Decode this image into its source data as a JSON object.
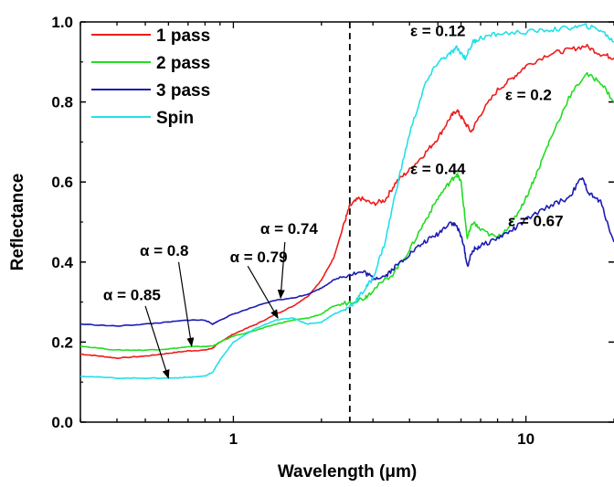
{
  "chart_data": {
    "type": "line",
    "xlabel": "Wavelength (μm)",
    "ylabel": "Reflectance",
    "xscale": "log",
    "xlim": [
      0.3,
      20
    ],
    "ylim": [
      0.0,
      1.0
    ],
    "x_ticks": [
      {
        "value": 1,
        "label": "1"
      },
      {
        "value": 10,
        "label": "10"
      }
    ],
    "y_ticks": [
      {
        "value": 0.0,
        "label": "0.0"
      },
      {
        "value": 0.2,
        "label": "0.2"
      },
      {
        "value": 0.4,
        "label": "0.4"
      },
      {
        "value": 0.6,
        "label": "0.6"
      },
      {
        "value": 0.8,
        "label": "0.8"
      },
      {
        "value": 1.0,
        "label": "1.0"
      }
    ],
    "vline_x": 2.5,
    "legend_position": "top-left",
    "series": [
      {
        "name": "1 pass",
        "color": "#ee1c1c",
        "points": [
          [
            0.3,
            0.17
          ],
          [
            0.35,
            0.165
          ],
          [
            0.4,
            0.16
          ],
          [
            0.5,
            0.165
          ],
          [
            0.6,
            0.172
          ],
          [
            0.7,
            0.178
          ],
          [
            0.8,
            0.18
          ],
          [
            0.85,
            0.185
          ],
          [
            0.9,
            0.2
          ],
          [
            1.0,
            0.22
          ],
          [
            1.2,
            0.245
          ],
          [
            1.4,
            0.27
          ],
          [
            1.6,
            0.29
          ],
          [
            1.8,
            0.315
          ],
          [
            2.0,
            0.355
          ],
          [
            2.2,
            0.41
          ],
          [
            2.4,
            0.5
          ],
          [
            2.5,
            0.54
          ],
          [
            2.7,
            0.56
          ],
          [
            3.0,
            0.545
          ],
          [
            3.3,
            0.555
          ],
          [
            3.6,
            0.6
          ],
          [
            4.0,
            0.63
          ],
          [
            4.5,
            0.67
          ],
          [
            5.0,
            0.71
          ],
          [
            5.5,
            0.76
          ],
          [
            5.8,
            0.78
          ],
          [
            6.1,
            0.755
          ],
          [
            6.5,
            0.725
          ],
          [
            7.0,
            0.77
          ],
          [
            8.0,
            0.83
          ],
          [
            9.0,
            0.86
          ],
          [
            10.0,
            0.89
          ],
          [
            12.0,
            0.92
          ],
          [
            14.0,
            0.93
          ],
          [
            16.0,
            0.94
          ],
          [
            18.0,
            0.92
          ],
          [
            20.0,
            0.91
          ]
        ]
      },
      {
        "name": "2 pass",
        "color": "#22dd22",
        "points": [
          [
            0.3,
            0.19
          ],
          [
            0.4,
            0.18
          ],
          [
            0.5,
            0.18
          ],
          [
            0.6,
            0.183
          ],
          [
            0.7,
            0.188
          ],
          [
            0.85,
            0.19
          ],
          [
            0.9,
            0.2
          ],
          [
            1.0,
            0.215
          ],
          [
            1.2,
            0.23
          ],
          [
            1.4,
            0.245
          ],
          [
            1.6,
            0.255
          ],
          [
            1.8,
            0.26
          ],
          [
            2.0,
            0.27
          ],
          [
            2.2,
            0.29
          ],
          [
            2.5,
            0.3
          ],
          [
            2.8,
            0.31
          ],
          [
            3.0,
            0.33
          ],
          [
            3.5,
            0.37
          ],
          [
            4.0,
            0.43
          ],
          [
            4.5,
            0.5
          ],
          [
            5.0,
            0.56
          ],
          [
            5.5,
            0.6
          ],
          [
            5.8,
            0.62
          ],
          [
            6.0,
            0.6
          ],
          [
            6.3,
            0.46
          ],
          [
            6.6,
            0.5
          ],
          [
            7.0,
            0.48
          ],
          [
            8.0,
            0.46
          ],
          [
            9.0,
            0.5
          ],
          [
            10.0,
            0.56
          ],
          [
            11.0,
            0.63
          ],
          [
            12.0,
            0.7
          ],
          [
            14.0,
            0.81
          ],
          [
            16.0,
            0.87
          ],
          [
            18.0,
            0.85
          ],
          [
            20.0,
            0.8
          ]
        ]
      },
      {
        "name": "3 pass",
        "color": "#1c1cb4",
        "points": [
          [
            0.3,
            0.245
          ],
          [
            0.4,
            0.24
          ],
          [
            0.5,
            0.245
          ],
          [
            0.6,
            0.25
          ],
          [
            0.7,
            0.255
          ],
          [
            0.8,
            0.255
          ],
          [
            0.85,
            0.245
          ],
          [
            0.9,
            0.255
          ],
          [
            1.0,
            0.27
          ],
          [
            1.2,
            0.29
          ],
          [
            1.4,
            0.305
          ],
          [
            1.6,
            0.31
          ],
          [
            1.8,
            0.32
          ],
          [
            2.0,
            0.335
          ],
          [
            2.2,
            0.355
          ],
          [
            2.5,
            0.37
          ],
          [
            2.8,
            0.375
          ],
          [
            3.0,
            0.36
          ],
          [
            3.3,
            0.365
          ],
          [
            3.6,
            0.39
          ],
          [
            4.0,
            0.42
          ],
          [
            4.5,
            0.45
          ],
          [
            5.0,
            0.47
          ],
          [
            5.5,
            0.5
          ],
          [
            5.8,
            0.49
          ],
          [
            6.1,
            0.45
          ],
          [
            6.3,
            0.39
          ],
          [
            6.6,
            0.43
          ],
          [
            7.0,
            0.44
          ],
          [
            8.0,
            0.46
          ],
          [
            9.0,
            0.48
          ],
          [
            10.0,
            0.505
          ],
          [
            12.0,
            0.54
          ],
          [
            14.0,
            0.56
          ],
          [
            15.5,
            0.61
          ],
          [
            16.5,
            0.57
          ],
          [
            18.0,
            0.55
          ],
          [
            20.0,
            0.45
          ]
        ]
      },
      {
        "name": "Spin",
        "color": "#22e0e8",
        "points": [
          [
            0.3,
            0.115
          ],
          [
            0.4,
            0.11
          ],
          [
            0.5,
            0.11
          ],
          [
            0.6,
            0.11
          ],
          [
            0.7,
            0.112
          ],
          [
            0.8,
            0.115
          ],
          [
            0.85,
            0.125
          ],
          [
            0.9,
            0.155
          ],
          [
            1.0,
            0.2
          ],
          [
            1.2,
            0.235
          ],
          [
            1.4,
            0.255
          ],
          [
            1.6,
            0.26
          ],
          [
            1.8,
            0.245
          ],
          [
            2.0,
            0.25
          ],
          [
            2.2,
            0.27
          ],
          [
            2.4,
            0.28
          ],
          [
            2.6,
            0.3
          ],
          [
            2.8,
            0.33
          ],
          [
            3.0,
            0.36
          ],
          [
            3.3,
            0.45
          ],
          [
            3.6,
            0.58
          ],
          [
            4.0,
            0.72
          ],
          [
            4.5,
            0.84
          ],
          [
            5.0,
            0.9
          ],
          [
            5.5,
            0.92
          ],
          [
            5.8,
            0.935
          ],
          [
            6.2,
            0.91
          ],
          [
            6.6,
            0.95
          ],
          [
            7.0,
            0.96
          ],
          [
            8.0,
            0.97
          ],
          [
            10.0,
            0.975
          ],
          [
            12.0,
            0.98
          ],
          [
            14.0,
            0.985
          ],
          [
            16.0,
            0.99
          ],
          [
            18.0,
            0.98
          ],
          [
            20.0,
            0.95
          ]
        ]
      }
    ],
    "annotations": [
      {
        "label": "α = 0.85",
        "x": 0.45,
        "y": 0.305,
        "arrow_from": [
          0.5,
          0.29
        ],
        "arrow_to": [
          0.6,
          0.11
        ]
      },
      {
        "label": "α = 0.8",
        "x": 0.58,
        "y": 0.415,
        "arrow_from": [
          0.65,
          0.4
        ],
        "arrow_to": [
          0.72,
          0.19
        ]
      },
      {
        "label": "α = 0.79",
        "x": 1.22,
        "y": 0.4,
        "arrow_from": [
          1.12,
          0.39
        ],
        "arrow_to": [
          1.42,
          0.26
        ]
      },
      {
        "label": "α = 0.74",
        "x": 1.55,
        "y": 0.47,
        "arrow_from": [
          1.5,
          0.45
        ],
        "arrow_to": [
          1.45,
          0.31
        ]
      },
      {
        "label": "ε = 0.12",
        "x": 5.0,
        "y": 0.965
      },
      {
        "label": "ε = 0.2",
        "x": 10.2,
        "y": 0.805
      },
      {
        "label": "ε = 0.44",
        "x": 5.0,
        "y": 0.62
      },
      {
        "label": "ε = 0.67",
        "x": 10.8,
        "y": 0.49
      }
    ]
  }
}
